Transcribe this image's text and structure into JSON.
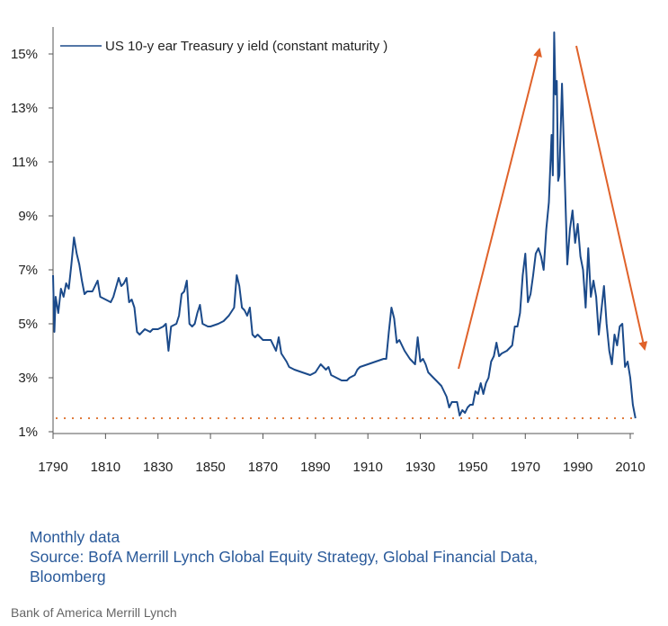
{
  "chart_data": {
    "type": "line",
    "title": "",
    "xlabel": "",
    "ylabel": "",
    "xlim": [
      1790,
      2010
    ],
    "ylim": [
      1,
      16
    ],
    "x_ticks": [
      1790,
      1810,
      1830,
      1850,
      1870,
      1890,
      1910,
      1930,
      1950,
      1970,
      1990,
      2010
    ],
    "x_tick_labels": [
      "1790",
      "1810",
      "1830",
      "1850",
      "1870",
      "1890",
      "1910",
      "1930",
      "1950",
      "1970",
      "1990",
      "2010"
    ],
    "y_ticks": [
      1,
      3,
      5,
      7,
      9,
      11,
      13,
      15
    ],
    "y_tick_labels": [
      "1%",
      "3%",
      "5%",
      "7%",
      "9%",
      "11%",
      "13%",
      "15%"
    ],
    "grid": false,
    "legend": {
      "placement": "top-left",
      "entries": [
        "US 10-y ear Treasury  y ield (constant maturity )"
      ]
    },
    "reference_line": {
      "value": 1.5,
      "style": "dotted",
      "color": "#e07b3c"
    },
    "annotations": [
      "up-arrow 1945-1980",
      "down-arrow 1982-2015"
    ],
    "series": [
      {
        "name": "US 10-year Treasury yield (constant maturity)",
        "color": "#1b4a8a",
        "points": [
          [
            1790,
            6.8
          ],
          [
            1790.5,
            4.7
          ],
          [
            1791,
            6.0
          ],
          [
            1792,
            5.4
          ],
          [
            1793,
            6.3
          ],
          [
            1794,
            6.0
          ],
          [
            1795,
            6.5
          ],
          [
            1796,
            6.3
          ],
          [
            1797,
            7.2
          ],
          [
            1798,
            8.2
          ],
          [
            1799,
            7.6
          ],
          [
            1800,
            7.2
          ],
          [
            1801,
            6.6
          ],
          [
            1802,
            6.1
          ],
          [
            1803,
            6.2
          ],
          [
            1805,
            6.2
          ],
          [
            1806,
            6.4
          ],
          [
            1807,
            6.6
          ],
          [
            1808,
            6.0
          ],
          [
            1810,
            5.9
          ],
          [
            1812,
            5.8
          ],
          [
            1813,
            6.0
          ],
          [
            1815,
            6.7
          ],
          [
            1816,
            6.4
          ],
          [
            1817,
            6.5
          ],
          [
            1818,
            6.7
          ],
          [
            1819,
            5.8
          ],
          [
            1820,
            5.9
          ],
          [
            1821,
            5.6
          ],
          [
            1822,
            4.7
          ],
          [
            1823,
            4.6
          ],
          [
            1825,
            4.8
          ],
          [
            1827,
            4.7
          ],
          [
            1828,
            4.8
          ],
          [
            1830,
            4.8
          ],
          [
            1832,
            4.9
          ],
          [
            1833,
            5.0
          ],
          [
            1834,
            4.0
          ],
          [
            1835,
            4.9
          ],
          [
            1837,
            5.0
          ],
          [
            1838,
            5.3
          ],
          [
            1839,
            6.1
          ],
          [
            1840,
            6.2
          ],
          [
            1841,
            6.6
          ],
          [
            1842,
            5.0
          ],
          [
            1843,
            4.9
          ],
          [
            1844,
            5.0
          ],
          [
            1845,
            5.4
          ],
          [
            1846,
            5.7
          ],
          [
            1847,
            5.0
          ],
          [
            1849,
            4.9
          ],
          [
            1850,
            4.9
          ],
          [
            1853,
            5.0
          ],
          [
            1855,
            5.1
          ],
          [
            1857,
            5.3
          ],
          [
            1859,
            5.6
          ],
          [
            1860,
            6.8
          ],
          [
            1861,
            6.4
          ],
          [
            1862,
            5.6
          ],
          [
            1863,
            5.5
          ],
          [
            1864,
            5.3
          ],
          [
            1865,
            5.6
          ],
          [
            1866,
            4.6
          ],
          [
            1867,
            4.5
          ],
          [
            1868,
            4.6
          ],
          [
            1870,
            4.4
          ],
          [
            1872,
            4.4
          ],
          [
            1873,
            4.4
          ],
          [
            1874,
            4.2
          ],
          [
            1875,
            4.0
          ],
          [
            1876,
            4.5
          ],
          [
            1877,
            3.9
          ],
          [
            1879,
            3.6
          ],
          [
            1880,
            3.4
          ],
          [
            1882,
            3.3
          ],
          [
            1885,
            3.2
          ],
          [
            1888,
            3.1
          ],
          [
            1890,
            3.2
          ],
          [
            1892,
            3.5
          ],
          [
            1893,
            3.4
          ],
          [
            1894,
            3.3
          ],
          [
            1895,
            3.4
          ],
          [
            1896,
            3.1
          ],
          [
            1898,
            3.0
          ],
          [
            1900,
            2.9
          ],
          [
            1902,
            2.9
          ],
          [
            1903,
            3.0
          ],
          [
            1905,
            3.1
          ],
          [
            1906,
            3.3
          ],
          [
            1907,
            3.4
          ],
          [
            1910,
            3.5
          ],
          [
            1913,
            3.6
          ],
          [
            1916,
            3.7
          ],
          [
            1917,
            3.7
          ],
          [
            1918,
            4.7
          ],
          [
            1919,
            5.6
          ],
          [
            1920,
            5.2
          ],
          [
            1921,
            4.3
          ],
          [
            1922,
            4.4
          ],
          [
            1924,
            4.0
          ],
          [
            1926,
            3.7
          ],
          [
            1928,
            3.5
          ],
          [
            1929,
            4.5
          ],
          [
            1930,
            3.6
          ],
          [
            1931,
            3.7
          ],
          [
            1932,
            3.5
          ],
          [
            1933,
            3.2
          ],
          [
            1935,
            3.0
          ],
          [
            1936,
            2.9
          ],
          [
            1938,
            2.7
          ],
          [
            1939,
            2.5
          ],
          [
            1940,
            2.3
          ],
          [
            1941,
            1.9
          ],
          [
            1942,
            2.1
          ],
          [
            1944,
            2.1
          ],
          [
            1945,
            1.6
          ],
          [
            1946,
            1.8
          ],
          [
            1947,
            1.7
          ],
          [
            1948,
            1.9
          ],
          [
            1949,
            2.0
          ],
          [
            1950,
            2.0
          ],
          [
            1951,
            2.5
          ],
          [
            1952,
            2.4
          ],
          [
            1953,
            2.8
          ],
          [
            1954,
            2.4
          ],
          [
            1955,
            2.8
          ],
          [
            1956,
            3.0
          ],
          [
            1957,
            3.6
          ],
          [
            1958,
            3.8
          ],
          [
            1959,
            4.3
          ],
          [
            1960,
            3.8
          ],
          [
            1961,
            3.9
          ],
          [
            1963,
            4.0
          ],
          [
            1965,
            4.2
          ],
          [
            1966,
            4.9
          ],
          [
            1967,
            4.9
          ],
          [
            1968,
            5.4
          ],
          [
            1969,
            6.8
          ],
          [
            1970,
            7.6
          ],
          [
            1971,
            5.8
          ],
          [
            1972,
            6.1
          ],
          [
            1973,
            6.8
          ],
          [
            1974,
            7.6
          ],
          [
            1975,
            7.8
          ],
          [
            1976,
            7.5
          ],
          [
            1977,
            7.0
          ],
          [
            1978,
            8.5
          ],
          [
            1979,
            9.5
          ],
          [
            1980,
            12.0
          ],
          [
            1980.5,
            10.5
          ],
          [
            1981,
            15.8
          ],
          [
            1981.5,
            13.5
          ],
          [
            1982,
            14.0
          ],
          [
            1982.5,
            10.3
          ],
          [
            1983,
            10.5
          ],
          [
            1984,
            13.9
          ],
          [
            1985,
            10.6
          ],
          [
            1986,
            7.2
          ],
          [
            1987,
            8.5
          ],
          [
            1988,
            9.2
          ],
          [
            1989,
            8.0
          ],
          [
            1990,
            8.7
          ],
          [
            1991,
            7.5
          ],
          [
            1992,
            7.0
          ],
          [
            1993,
            5.6
          ],
          [
            1994,
            7.8
          ],
          [
            1995,
            6.0
          ],
          [
            1996,
            6.6
          ],
          [
            1997,
            6.0
          ],
          [
            1998,
            4.6
          ],
          [
            1999,
            5.5
          ],
          [
            2000,
            6.4
          ],
          [
            2001,
            5.0
          ],
          [
            2002,
            4.0
          ],
          [
            2003,
            3.5
          ],
          [
            2004,
            4.6
          ],
          [
            2005,
            4.2
          ],
          [
            2006,
            4.9
          ],
          [
            2007,
            5.0
          ],
          [
            2008,
            3.4
          ],
          [
            2009,
            3.6
          ],
          [
            2010,
            3.0
          ],
          [
            2011,
            2.0
          ],
          [
            2012,
            1.5
          ]
        ]
      }
    ]
  },
  "notes": {
    "line1": "Monthly data",
    "line2": "Source: BofA Merrill Lynch Global Equity Strategy, Global Financial Data,",
    "line3": "Bloomberg"
  },
  "footer": "Bank of America Merrill Lynch"
}
